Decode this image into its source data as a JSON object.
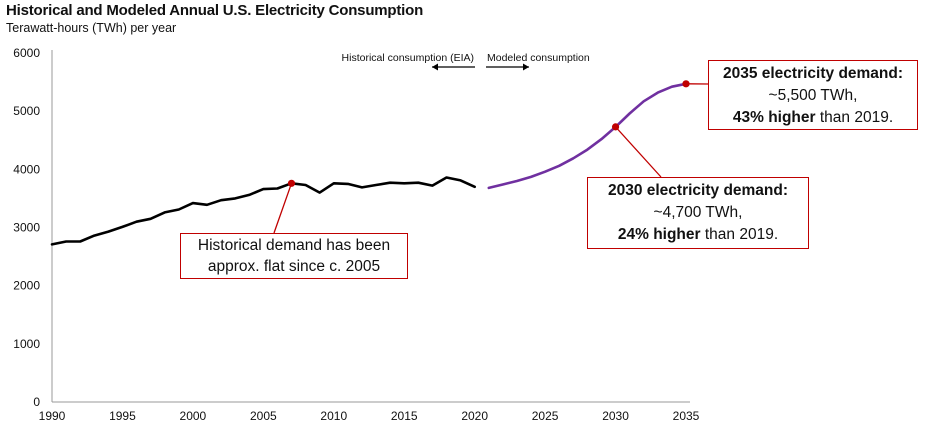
{
  "header": {
    "title": "Historical and Modeled Annual U.S. Electricity Consumption",
    "subtitle": "Terawatt-hours (TWh) per year"
  },
  "arrows": {
    "historical": "Historical consumption (EIA)",
    "modeled": "Modeled consumption"
  },
  "annotations": {
    "historical": {
      "line1": "Historical demand has been",
      "line2": "approx. flat since c. 2005"
    },
    "y2030": {
      "title": "2030 electricity demand:",
      "value": "~4,700 TWh,",
      "bold": "24% higher",
      "rest": " than 2019."
    },
    "y2035": {
      "title": "2035 electricity demand:",
      "value": "~5,500 TWh,",
      "bold": "43% higher",
      "rest": " than 2019."
    }
  },
  "colors": {
    "historical": "#000000",
    "modeled": "#7030a0",
    "marker": "#c00000"
  },
  "chart_data": {
    "type": "line",
    "title": "Historical and Modeled Annual U.S. Electricity Consumption",
    "ylabel": "Terawatt-hours (TWh) per year",
    "xlim": [
      1990,
      2035
    ],
    "ylim": [
      0,
      6000
    ],
    "x_ticks": [
      1990,
      1995,
      2000,
      2005,
      2010,
      2015,
      2020,
      2025,
      2030,
      2035
    ],
    "y_ticks": [
      0,
      1000,
      2000,
      3000,
      4000,
      5000,
      6000
    ],
    "grid": false,
    "series": [
      {
        "name": "Historical consumption (EIA)",
        "x": [
          1990,
          1991,
          1992,
          1993,
          1994,
          1995,
          1996,
          1997,
          1998,
          1999,
          2000,
          2001,
          2002,
          2003,
          2004,
          2005,
          2006,
          2007,
          2008,
          2009,
          2010,
          2011,
          2012,
          2013,
          2014,
          2015,
          2016,
          2017,
          2018,
          2019,
          2020
        ],
        "y": [
          2710,
          2760,
          2760,
          2860,
          2930,
          3010,
          3100,
          3150,
          3260,
          3310,
          3420,
          3390,
          3470,
          3500,
          3560,
          3660,
          3670,
          3760,
          3730,
          3600,
          3760,
          3750,
          3690,
          3730,
          3770,
          3760,
          3770,
          3720,
          3860,
          3810,
          3700
        ]
      },
      {
        "name": "Modeled consumption",
        "x": [
          2021,
          2022,
          2023,
          2024,
          2025,
          2026,
          2027,
          2028,
          2029,
          2030,
          2031,
          2032,
          2033,
          2034,
          2035
        ],
        "y": [
          3680,
          3740,
          3800,
          3870,
          3960,
          4060,
          4190,
          4340,
          4520,
          4730,
          4960,
          5170,
          5320,
          5420,
          5470
        ]
      }
    ],
    "markers": [
      {
        "x": 2007,
        "y": 3760
      },
      {
        "x": 2030,
        "y": 4730
      },
      {
        "x": 2035,
        "y": 5470
      }
    ]
  }
}
